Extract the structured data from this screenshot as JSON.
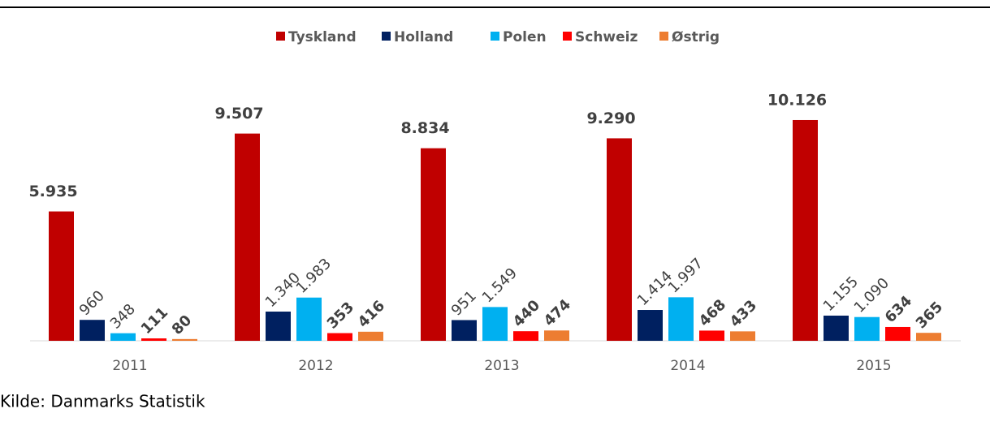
{
  "chart_data": {
    "type": "bar",
    "categories": [
      "2011",
      "2012",
      "2013",
      "2014",
      "2015"
    ],
    "series": [
      {
        "name": "Tyskland",
        "color": "#c00000",
        "values": [
          5935,
          9507,
          8834,
          9290,
          10126
        ],
        "value_labels": [
          "5.935",
          "9.507",
          "8.834",
          "9.290",
          "10.126"
        ]
      },
      {
        "name": "Holland",
        "color": "#002060",
        "values": [
          960,
          1340,
          951,
          1414,
          1155
        ],
        "value_labels": [
          "960",
          "1.340",
          "951",
          "1.414",
          "1.155"
        ]
      },
      {
        "name": "Polen",
        "color": "#00b0f0",
        "values": [
          348,
          1983,
          1549,
          1997,
          1090
        ],
        "value_labels": [
          "348",
          "1.983",
          "1.549",
          "1.997",
          "1.090"
        ]
      },
      {
        "name": "Schweiz",
        "color": "#ff0000",
        "values": [
          111,
          353,
          440,
          468,
          634
        ],
        "value_labels": [
          "111",
          "353",
          "440",
          "468",
          "634"
        ]
      },
      {
        "name": "Østrig",
        "color": "#ed7d31",
        "values": [
          80,
          416,
          474,
          433,
          365
        ],
        "value_labels": [
          "80",
          "416",
          "474",
          "433",
          "365"
        ]
      }
    ],
    "ylim": [
      0,
      11000
    ],
    "source": "Kilde: Danmarks Statistik"
  }
}
